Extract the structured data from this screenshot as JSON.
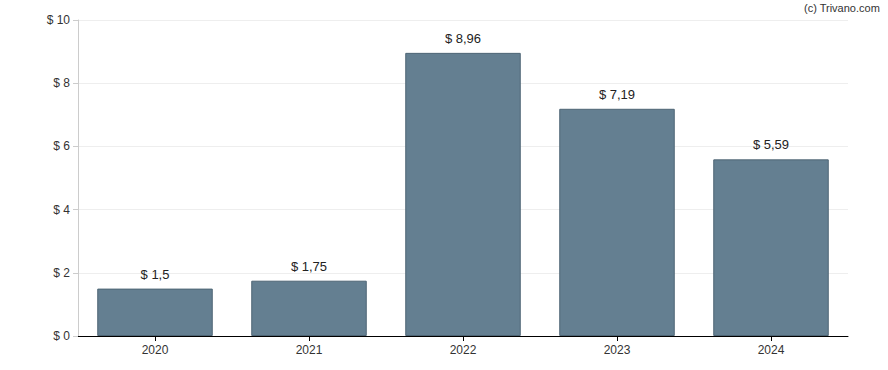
{
  "chart_data": {
    "type": "bar",
    "annotation": "(c) Trivano.com",
    "categories": [
      "2020",
      "2021",
      "2022",
      "2023",
      "2024"
    ],
    "values": [
      1.5,
      1.75,
      8.96,
      7.19,
      5.59
    ],
    "value_labels": [
      "$ 1,5",
      "$ 1,75",
      "$ 8,96",
      "$ 7,19",
      "$ 5,59"
    ],
    "data_labels": true,
    "color": "#647f91",
    "ylim": [
      0,
      10
    ],
    "yticks": [
      {
        "value": 0,
        "label": "$ 0"
      },
      {
        "value": 2,
        "label": "$ 2"
      },
      {
        "value": 4,
        "label": "$ 4"
      },
      {
        "value": 6,
        "label": "$ 6"
      },
      {
        "value": 8,
        "label": "$ 8"
      },
      {
        "value": 10,
        "label": "$ 10"
      }
    ],
    "grid": true
  }
}
